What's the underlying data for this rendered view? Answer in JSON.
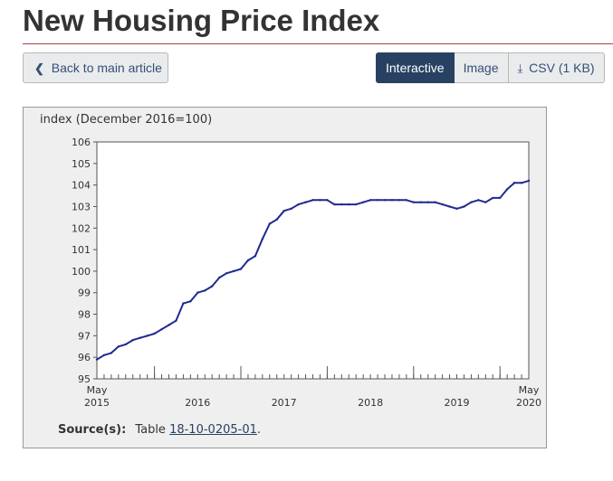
{
  "page": {
    "title": "New Housing Price Index"
  },
  "toolbar": {
    "back_label": "Back to main article",
    "interactive_label": "Interactive",
    "image_label": "Image",
    "csv_label": "CSV (1 KB)",
    "icons": {
      "back": "chevron-left-icon",
      "download": "download-icon"
    }
  },
  "source": {
    "label": "Source(s):",
    "prefix": "Table",
    "link_text": "18-10-0205-01",
    "suffix": "."
  },
  "colors": {
    "line": "#1f2a8f",
    "accent_rule": "#af3c43",
    "active_button": "#284162"
  },
  "chart_data": {
    "type": "line",
    "ylabel": "index (December 2016=100)",
    "ylim": [
      95,
      106
    ],
    "yticks": [
      95,
      96,
      97,
      98,
      99,
      100,
      101,
      102,
      103,
      104,
      105,
      106
    ],
    "x_start": "2015-05",
    "x_end": "2020-05",
    "x_labels": [
      {
        "month": "2015-05",
        "lines": [
          "May",
          "2015"
        ]
      },
      {
        "month": "2016-07",
        "lines": [
          "2016"
        ]
      },
      {
        "month": "2017-07",
        "lines": [
          "2017"
        ]
      },
      {
        "month": "2018-07",
        "lines": [
          "2018"
        ]
      },
      {
        "month": "2019-07",
        "lines": [
          "2019"
        ]
      },
      {
        "month": "2020-05",
        "lines": [
          "May",
          "2020"
        ]
      }
    ],
    "major_ticks": [
      "2016-01",
      "2017-01",
      "2018-01",
      "2019-01",
      "2020-01"
    ],
    "grid": false,
    "series": [
      {
        "x": [
          "2015-05",
          "2015-06",
          "2015-07",
          "2015-08",
          "2015-09",
          "2015-10",
          "2015-11",
          "2015-12",
          "2016-01",
          "2016-02",
          "2016-03",
          "2016-04",
          "2016-05",
          "2016-06",
          "2016-07",
          "2016-08",
          "2016-09",
          "2016-10",
          "2016-11",
          "2016-12",
          "2017-01",
          "2017-02",
          "2017-03",
          "2017-04",
          "2017-05",
          "2017-06",
          "2017-07",
          "2017-08",
          "2017-09",
          "2017-10",
          "2017-11",
          "2017-12",
          "2018-01",
          "2018-02",
          "2018-03",
          "2018-04",
          "2018-05",
          "2018-06",
          "2018-07",
          "2018-08",
          "2018-09",
          "2018-10",
          "2018-11",
          "2018-12",
          "2019-01",
          "2019-02",
          "2019-03",
          "2019-04",
          "2019-05",
          "2019-06",
          "2019-07",
          "2019-08",
          "2019-09",
          "2019-10",
          "2019-11",
          "2019-12",
          "2020-01",
          "2020-02",
          "2020-03",
          "2020-04",
          "2020-05"
        ],
        "values": [
          95.9,
          96.1,
          96.2,
          96.5,
          96.6,
          96.8,
          96.9,
          97.0,
          97.1,
          97.3,
          97.5,
          97.7,
          98.5,
          98.6,
          99.0,
          99.1,
          99.3,
          99.7,
          99.9,
          100.0,
          100.1,
          100.5,
          100.7,
          101.5,
          102.2,
          102.4,
          102.8,
          102.9,
          103.1,
          103.2,
          103.3,
          103.3,
          103.3,
          103.1,
          103.1,
          103.1,
          103.1,
          103.2,
          103.3,
          103.3,
          103.3,
          103.3,
          103.3,
          103.3,
          103.2,
          103.2,
          103.2,
          103.2,
          103.1,
          103.0,
          102.9,
          103.0,
          103.2,
          103.3,
          103.2,
          103.4,
          103.4,
          103.8,
          104.1,
          104.1,
          104.2
        ]
      }
    ]
  }
}
